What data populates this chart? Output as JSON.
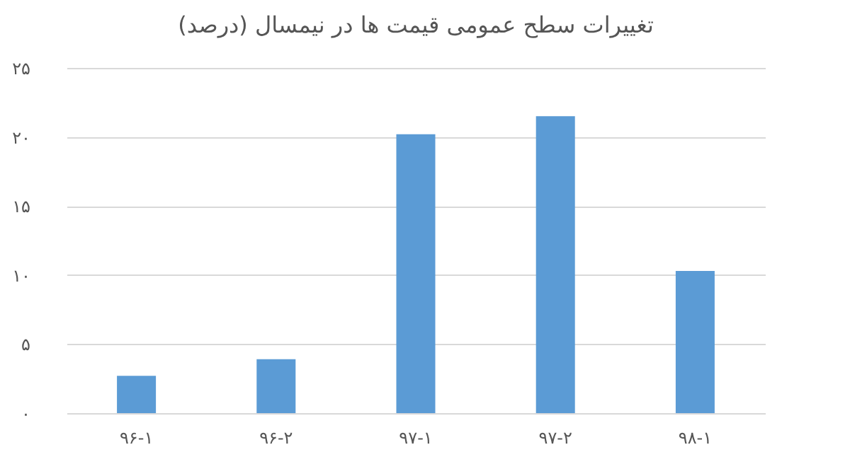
{
  "chart_data": {
    "type": "bar",
    "title": "تغییرات سطح عمومی قیمت ها در نیمسال (درصد)",
    "categories": [
      "۹۶-۱",
      "۹۶-۲",
      "۹۷-۱",
      "۹۷-۲",
      "۹۸-۱"
    ],
    "values": [
      2.7,
      3.9,
      20.2,
      21.5,
      10.3
    ],
    "color": "#5b9bd5",
    "ylim": [
      0,
      25
    ],
    "yticks": [
      {
        "value": 0,
        "label": "۰"
      },
      {
        "value": 5,
        "label": "۵"
      },
      {
        "value": 10,
        "label": "۱۰"
      },
      {
        "value": 15,
        "label": "۱۵"
      },
      {
        "value": 20,
        "label": "۲۰"
      },
      {
        "value": 25,
        "label": "۲۵"
      }
    ],
    "grid": "y"
  }
}
